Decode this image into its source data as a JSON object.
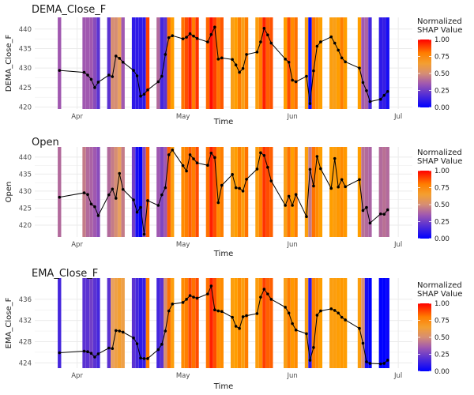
{
  "colors": {
    "low": "#0000ff",
    "mid": "#a058b0",
    "mid2": "#e8a060",
    "high": "#ff0000",
    "orange": "#ff9e00",
    "line": "#000000",
    "grid": "#ebebeb"
  },
  "x_ticks": [
    "Apr",
    "May",
    "Jun",
    "Jul"
  ],
  "chart_data": [
    {
      "type": "line",
      "title": "DEMA_Close_F",
      "xlabel": "Time",
      "ylabel": "DEMA_Close_F",
      "ylim": [
        419.5,
        443
      ],
      "yticks": [
        420,
        425,
        430,
        435,
        440
      ],
      "ytick_labels": [
        "420",
        "425",
        "430",
        "435",
        "440"
      ],
      "legend": {
        "title": "Normalized\nSHAP Value",
        "ticks": [
          "1.00",
          "0.75",
          "0.50",
          "0.25",
          "0.00"
        ],
        "placement": "right"
      },
      "x": [
        "2023-03-27",
        "2023-04-03",
        "2023-04-04",
        "2023-04-05",
        "2023-04-06",
        "2023-04-07",
        "2023-04-10",
        "2023-04-11",
        "2023-04-12",
        "2023-04-13",
        "2023-04-14",
        "2023-04-17",
        "2023-04-18",
        "2023-04-19",
        "2023-04-20",
        "2023-04-21",
        "2023-04-24",
        "2023-04-25",
        "2023-04-26",
        "2023-04-27",
        "2023-04-28",
        "2023-05-01",
        "2023-05-02",
        "2023-05-03",
        "2023-05-04",
        "2023-05-05",
        "2023-05-08",
        "2023-05-09",
        "2023-05-10",
        "2023-05-11",
        "2023-05-12",
        "2023-05-15",
        "2023-05-16",
        "2023-05-17",
        "2023-05-18",
        "2023-05-19",
        "2023-05-22",
        "2023-05-23",
        "2023-05-24",
        "2023-05-25",
        "2023-05-26",
        "2023-05-30",
        "2023-05-31",
        "2023-06-01",
        "2023-06-02",
        "2023-06-05",
        "2023-06-06",
        "2023-06-07",
        "2023-06-08",
        "2023-06-09",
        "2023-06-12",
        "2023-06-13",
        "2023-06-14",
        "2023-06-15",
        "2023-06-16",
        "2023-06-20",
        "2023-06-21",
        "2023-06-22",
        "2023-06-23",
        "2023-06-26",
        "2023-06-27",
        "2023-06-28"
      ],
      "values": [
        429.4,
        428.9,
        428.2,
        427.1,
        425.0,
        426.4,
        428.2,
        427.8,
        433.1,
        432.5,
        431.5,
        429.4,
        428.0,
        422.8,
        423.3,
        424.4,
        426.5,
        427.9,
        433.5,
        437.8,
        438.3,
        437.5,
        437.9,
        438.8,
        438.2,
        437.6,
        436.7,
        438.6,
        440.5,
        432.3,
        432.6,
        432.2,
        430.8,
        428.9,
        429.9,
        433.5,
        434.1,
        436.7,
        440.2,
        438.5,
        436.4,
        432.3,
        431.5,
        426.9,
        426.5,
        427.9,
        420.9,
        429.3,
        435.6,
        436.7,
        438.0,
        436.4,
        434.6,
        432.6,
        431.6,
        430.0,
        426.3,
        424.2,
        421.4,
        422.0,
        423.0,
        424.0
      ],
      "shap": [
        0.35,
        0.35,
        0.35,
        0.35,
        0.3,
        0.2,
        0.2,
        0.5,
        0.5,
        0.55,
        0.35,
        0.1,
        0.1,
        0.1,
        0.1,
        0.9,
        0.4,
        0.15,
        0.2,
        0.82,
        0.75,
        0.82,
        0.88,
        0.95,
        0.8,
        0.92,
        0.84,
        0.98,
        0.9,
        0.82,
        0.86,
        0.7,
        0.75,
        0.8,
        0.7,
        0.8,
        0.72,
        0.8,
        0.95,
        0.85,
        0.87,
        0.75,
        0.88,
        0.78,
        0.82,
        0.7,
        0.02,
        0.82,
        0.78,
        0.75,
        0.72,
        0.7,
        0.75,
        0.8,
        0.75,
        0.75,
        0.35,
        0.38,
        0.15,
        0.1,
        0.12,
        0.05
      ]
    },
    {
      "type": "line",
      "title": "Open",
      "xlabel": "Time",
      "ylabel": "Open",
      "ylim": [
        416.5,
        443
      ],
      "yticks": [
        420,
        425,
        430,
        435,
        440
      ],
      "ytick_labels": [
        "420",
        "425",
        "430",
        "435",
        "440"
      ],
      "legend": {
        "title": "Normalized\nSHAP Value",
        "ticks": [
          "1.00",
          "0.75",
          "0.50",
          "0.25",
          "0.00"
        ],
        "placement": "right"
      },
      "x": [
        "2023-03-27",
        "2023-04-03",
        "2023-04-04",
        "2023-04-05",
        "2023-04-06",
        "2023-04-07",
        "2023-04-10",
        "2023-04-11",
        "2023-04-12",
        "2023-04-13",
        "2023-04-14",
        "2023-04-17",
        "2023-04-18",
        "2023-04-19",
        "2023-04-20",
        "2023-04-21",
        "2023-04-24",
        "2023-04-25",
        "2023-04-26",
        "2023-04-27",
        "2023-04-28",
        "2023-05-01",
        "2023-05-02",
        "2023-05-03",
        "2023-05-04",
        "2023-05-05",
        "2023-05-08",
        "2023-05-09",
        "2023-05-10",
        "2023-05-11",
        "2023-05-12",
        "2023-05-15",
        "2023-05-16",
        "2023-05-17",
        "2023-05-18",
        "2023-05-19",
        "2023-05-22",
        "2023-05-23",
        "2023-05-24",
        "2023-05-25",
        "2023-05-26",
        "2023-05-30",
        "2023-05-31",
        "2023-06-01",
        "2023-06-02",
        "2023-06-05",
        "2023-06-06",
        "2023-06-07",
        "2023-06-08",
        "2023-06-09",
        "2023-06-12",
        "2023-06-13",
        "2023-06-14",
        "2023-06-15",
        "2023-06-16",
        "2023-06-20",
        "2023-06-21",
        "2023-06-22",
        "2023-06-23",
        "2023-06-26",
        "2023-06-27",
        "2023-06-28"
      ],
      "values": [
        428.2,
        429.5,
        429.0,
        426.2,
        425.4,
        422.8,
        428.9,
        430.6,
        427.9,
        435.2,
        430.5,
        427.4,
        423.8,
        425.2,
        417.3,
        427.2,
        425.8,
        428.9,
        431.0,
        440.7,
        442.1,
        437.5,
        435.9,
        440.7,
        439.5,
        438.3,
        437.6,
        441.2,
        439.9,
        426.6,
        431.7,
        434.9,
        431.0,
        430.8,
        430.0,
        433.5,
        436.5,
        441.3,
        440.5,
        437.0,
        433.0,
        425.8,
        428.5,
        425.8,
        429.0,
        422.5,
        436.4,
        431.5,
        440.2,
        436.6,
        430.8,
        439.6,
        431.2,
        433.4,
        431.3,
        433.4,
        424.3,
        425.2,
        420.6,
        423.3,
        423.2,
        424.5
      ],
      "shap": [
        0.4,
        0.45,
        0.4,
        0.38,
        0.35,
        0.3,
        0.4,
        0.45,
        0.5,
        0.55,
        0.45,
        0.25,
        0.05,
        0.0,
        0.3,
        0.85,
        0.35,
        0.28,
        0.35,
        0.85,
        0.72,
        0.78,
        0.8,
        0.85,
        0.8,
        0.88,
        0.82,
        0.95,
        0.88,
        0.78,
        0.8,
        0.7,
        0.75,
        0.8,
        0.72,
        0.82,
        0.72,
        0.8,
        0.92,
        0.88,
        0.85,
        0.7,
        0.82,
        0.75,
        0.8,
        0.72,
        0.45,
        0.82,
        0.78,
        0.75,
        0.75,
        0.72,
        0.76,
        0.78,
        0.76,
        0.75,
        0.42,
        0.4,
        0.38,
        0.4,
        0.42,
        0.4
      ]
    },
    {
      "type": "line",
      "title": "EMA_Close_F",
      "xlabel": "Time",
      "ylabel": "EMA_Close_F",
      "ylim": [
        423,
        440
      ],
      "yticks": [
        424,
        428,
        432,
        436
      ],
      "ytick_labels": [
        "424",
        "428",
        "432",
        "436"
      ],
      "legend": {
        "title": "Normalized\nSHAP Value",
        "ticks": [
          "1.00",
          "0.75",
          "0.50",
          "0.25",
          "0.00"
        ],
        "placement": "right"
      },
      "x": [
        "2023-03-27",
        "2023-04-03",
        "2023-04-04",
        "2023-04-05",
        "2023-04-06",
        "2023-04-07",
        "2023-04-10",
        "2023-04-11",
        "2023-04-12",
        "2023-04-13",
        "2023-04-14",
        "2023-04-17",
        "2023-04-18",
        "2023-04-19",
        "2023-04-20",
        "2023-04-21",
        "2023-04-24",
        "2023-04-25",
        "2023-04-26",
        "2023-04-27",
        "2023-04-28",
        "2023-05-01",
        "2023-05-02",
        "2023-05-03",
        "2023-05-04",
        "2023-05-05",
        "2023-05-08",
        "2023-05-09",
        "2023-05-10",
        "2023-05-11",
        "2023-05-12",
        "2023-05-15",
        "2023-05-16",
        "2023-05-17",
        "2023-05-18",
        "2023-05-19",
        "2023-05-22",
        "2023-05-23",
        "2023-05-24",
        "2023-05-25",
        "2023-05-26",
        "2023-05-30",
        "2023-05-31",
        "2023-06-01",
        "2023-06-02",
        "2023-06-05",
        "2023-06-06",
        "2023-06-07",
        "2023-06-08",
        "2023-06-09",
        "2023-06-12",
        "2023-06-13",
        "2023-06-14",
        "2023-06-15",
        "2023-06-16",
        "2023-06-20",
        "2023-06-21",
        "2023-06-22",
        "2023-06-23",
        "2023-06-26",
        "2023-06-27",
        "2023-06-28"
      ],
      "values": [
        425.9,
        426.2,
        426.1,
        425.8,
        425.1,
        425.7,
        426.8,
        426.7,
        430.1,
        430.0,
        429.8,
        428.7,
        427.6,
        424.9,
        424.8,
        424.8,
        426.5,
        427.5,
        430.0,
        433.8,
        435.1,
        435.4,
        436.0,
        436.7,
        436.4,
        436.2,
        437.0,
        438.5,
        434.0,
        433.8,
        433.7,
        432.6,
        430.9,
        430.5,
        432.7,
        432.9,
        433.3,
        436.4,
        437.9,
        437.0,
        436.0,
        434.5,
        433.4,
        431.4,
        430.2,
        429.5,
        424.5,
        426.9,
        433.0,
        433.8,
        434.2,
        433.9,
        433.4,
        432.6,
        432.1,
        430.5,
        427.7,
        424.2,
        423.9,
        423.8,
        423.9,
        424.5
      ],
      "shap": [
        0.15,
        0.2,
        0.2,
        0.25,
        0.2,
        0.15,
        0.2,
        0.55,
        0.6,
        0.65,
        0.6,
        0.2,
        0.15,
        0.1,
        0.12,
        0.8,
        0.15,
        0.2,
        0.5,
        0.82,
        0.72,
        0.78,
        0.8,
        0.88,
        0.82,
        0.88,
        0.82,
        0.95,
        0.88,
        0.78,
        0.78,
        0.72,
        0.75,
        0.78,
        0.72,
        0.8,
        0.72,
        0.78,
        0.9,
        0.85,
        0.85,
        0.7,
        0.8,
        0.76,
        0.78,
        0.7,
        0.1,
        0.8,
        0.78,
        0.75,
        0.72,
        0.72,
        0.74,
        0.76,
        0.74,
        0.72,
        0.5,
        0.05,
        0.0,
        0.0,
        0.0,
        0.02
      ]
    }
  ]
}
